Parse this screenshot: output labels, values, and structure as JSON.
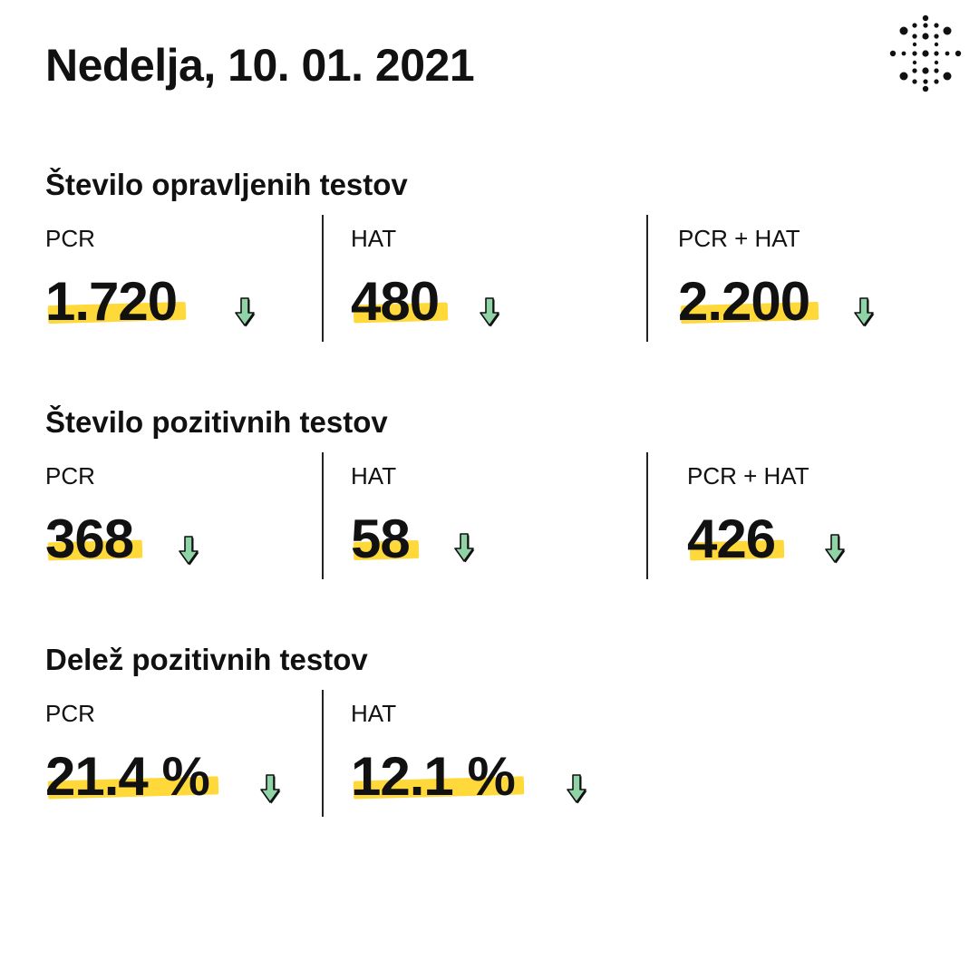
{
  "title": "Nedelja, 10. 01. 2021",
  "logo_icon": "dots-logo-icon",
  "colors": {
    "highlight": "#ffd83a",
    "arrow_down": "#8fd3a6",
    "text": "#111111"
  },
  "sections": [
    {
      "title": "Število opravljenih testov",
      "cells": [
        {
          "label": "PCR",
          "value": "1.720",
          "trend": "down"
        },
        {
          "label": "HAT",
          "value": "480",
          "trend": "down"
        },
        {
          "label": "PCR + HAT",
          "value": "2.200",
          "trend": "down"
        }
      ]
    },
    {
      "title": "Število pozitivnih testov",
      "cells": [
        {
          "label": "PCR",
          "value": "368",
          "trend": "down"
        },
        {
          "label": "HAT",
          "value": "58",
          "trend": "down"
        },
        {
          "label": "PCR + HAT",
          "value": "426",
          "trend": "down"
        }
      ]
    },
    {
      "title": "Delež pozitivnih testov",
      "cells": [
        {
          "label": "PCR",
          "value": "21.4 %",
          "trend": "down"
        },
        {
          "label": "HAT",
          "value": "12.1 %",
          "trend": "down"
        }
      ]
    }
  ]
}
